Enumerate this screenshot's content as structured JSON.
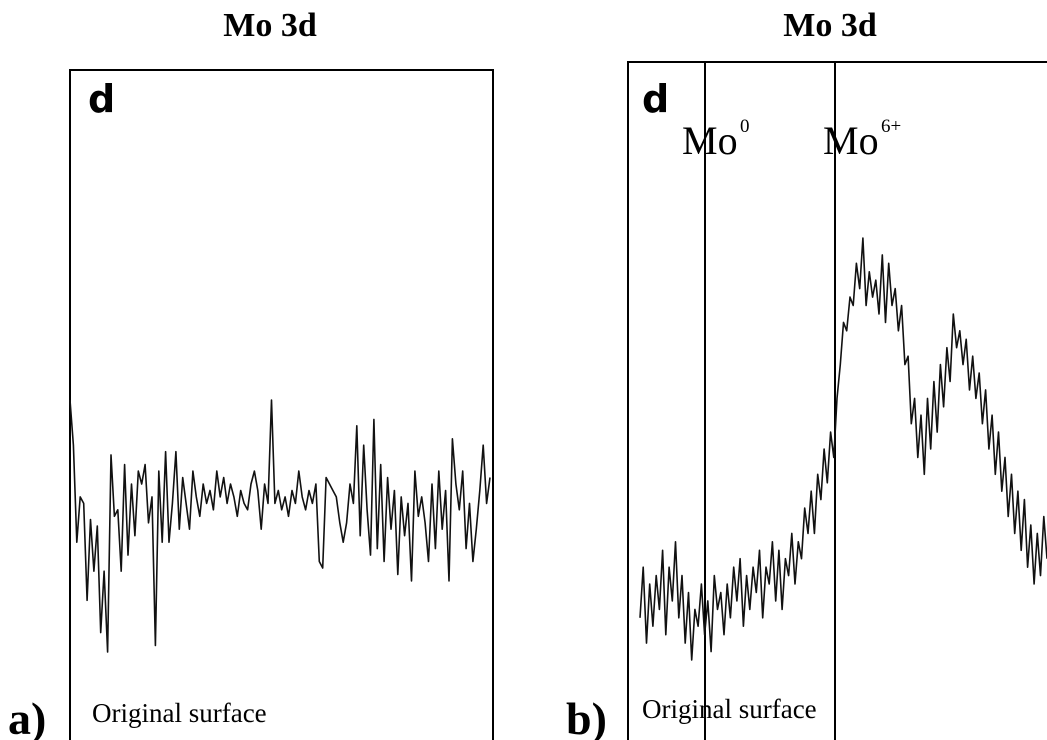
{
  "chart_data": [
    {
      "type": "line",
      "title": "Mo 3d",
      "panel_letter": "d",
      "panel_label": "a)",
      "annotation": "Original surface",
      "series": [
        {
          "values": [
            0.62,
            0.48,
            0.18,
            0.32,
            0.3,
            0.0,
            0.25,
            0.09,
            0.23,
            -0.1,
            0.09,
            -0.16,
            0.45,
            0.26,
            0.28,
            0.09,
            0.42,
            0.14,
            0.36,
            0.2,
            0.4,
            0.36,
            0.42,
            0.24,
            0.32,
            -0.14,
            0.4,
            0.18,
            0.46,
            0.18,
            0.3,
            0.46,
            0.22,
            0.38,
            0.3,
            0.22,
            0.4,
            0.32,
            0.26,
            0.36,
            0.3,
            0.34,
            0.28,
            0.4,
            0.32,
            0.38,
            0.3,
            0.36,
            0.32,
            0.26,
            0.34,
            0.3,
            0.28,
            0.36,
            0.4,
            0.34,
            0.22,
            0.36,
            0.3,
            0.62,
            0.3,
            0.34,
            0.28,
            0.32,
            0.26,
            0.34,
            0.3,
            0.4,
            0.32,
            0.28,
            0.34,
            0.3,
            0.36,
            0.12,
            0.1,
            0.38,
            0.36,
            0.34,
            0.32,
            0.24,
            0.18,
            0.24,
            0.36,
            0.3,
            0.54,
            0.2,
            0.48,
            0.28,
            0.14,
            0.56,
            0.16,
            0.42,
            0.12,
            0.38,
            0.22,
            0.34,
            0.08,
            0.32,
            0.2,
            0.3,
            0.06,
            0.4,
            0.26,
            0.32,
            0.24,
            0.12,
            0.36,
            0.16,
            0.4,
            0.22,
            0.34,
            0.06,
            0.5,
            0.36,
            0.28,
            0.4,
            0.16,
            0.3,
            0.12,
            0.22,
            0.34,
            0.48,
            0.3,
            0.38
          ]
        }
      ]
    },
    {
      "type": "line",
      "title": "Mo 3d",
      "panel_letter": "d",
      "panel_label": "b)",
      "annotation": "Original surface",
      "markers": [
        {
          "label": "Mo",
          "superscript": "0"
        },
        {
          "label": "Mo",
          "superscript": "6+"
        }
      ],
      "series": [
        {
          "values": [
            0.1,
            0.22,
            0.04,
            0.18,
            0.08,
            0.2,
            0.12,
            0.26,
            0.06,
            0.22,
            0.14,
            0.28,
            0.1,
            0.2,
            0.04,
            0.16,
            0.0,
            0.12,
            0.08,
            0.18,
            0.06,
            0.14,
            0.02,
            0.2,
            0.12,
            0.16,
            0.06,
            0.18,
            0.1,
            0.22,
            0.14,
            0.24,
            0.08,
            0.2,
            0.12,
            0.22,
            0.16,
            0.26,
            0.1,
            0.22,
            0.18,
            0.28,
            0.14,
            0.26,
            0.12,
            0.24,
            0.2,
            0.3,
            0.18,
            0.28,
            0.24,
            0.36,
            0.3,
            0.4,
            0.3,
            0.44,
            0.38,
            0.5,
            0.42,
            0.54,
            0.48,
            0.62,
            0.7,
            0.8,
            0.78,
            0.86,
            0.84,
            0.94,
            0.88,
            1.0,
            0.84,
            0.92,
            0.86,
            0.9,
            0.82,
            0.96,
            0.8,
            0.94,
            0.84,
            0.88,
            0.78,
            0.84,
            0.7,
            0.72,
            0.56,
            0.62,
            0.48,
            0.58,
            0.44,
            0.62,
            0.5,
            0.66,
            0.54,
            0.7,
            0.6,
            0.74,
            0.66,
            0.82,
            0.74,
            0.78,
            0.7,
            0.76,
            0.64,
            0.72,
            0.62,
            0.68,
            0.56,
            0.64,
            0.5,
            0.58,
            0.44,
            0.54,
            0.4,
            0.48,
            0.34,
            0.44,
            0.3,
            0.4,
            0.26,
            0.38,
            0.22,
            0.32,
            0.18,
            0.3,
            0.2,
            0.34,
            0.24
          ]
        }
      ]
    }
  ]
}
